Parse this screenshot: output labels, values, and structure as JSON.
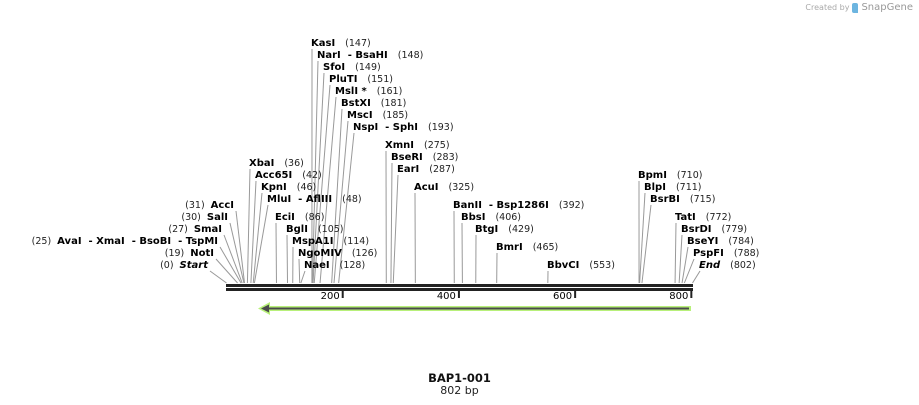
{
  "brand": {
    "created_by": "Created by",
    "name": "SnapGene"
  },
  "sequence": {
    "name": "BAP1-001",
    "length_label": "802 bp",
    "length": 802
  },
  "axis": {
    "ticks": [
      {
        "bp": 200,
        "label": "200"
      },
      {
        "bp": 400,
        "label": "400"
      },
      {
        "bp": 600,
        "label": "600"
      },
      {
        "bp": 800,
        "label": "800"
      }
    ]
  },
  "feature": {
    "type": "arrow",
    "direction": "reverse",
    "color": "#b8f07a",
    "line_color": "#4a4a4a"
  },
  "sites": [
    {
      "label": "Start",
      "pos": "(0)",
      "bp": 0,
      "italic": true
    },
    {
      "label": "NotI",
      "pos": "(19)",
      "bp": 19
    },
    {
      "label": "AvaI  - XmaI  - BsoBI  - TspMI",
      "pos": "(25)",
      "bp": 25
    },
    {
      "label": "SmaI",
      "pos": "(27)",
      "bp": 27
    },
    {
      "label": "SalI",
      "pos": "(30)",
      "bp": 30
    },
    {
      "label": "AccI",
      "pos": "(31)",
      "bp": 31
    },
    {
      "label": "XbaI",
      "pos": "(36)",
      "bp": 36
    },
    {
      "label": "Acc65I",
      "pos": "(42)",
      "bp": 42
    },
    {
      "label": "KpnI",
      "pos": "(46)",
      "bp": 46
    },
    {
      "label": "MluI  - AflIII",
      "pos": "(48)",
      "bp": 48
    },
    {
      "label": "EciI",
      "pos": "(86)",
      "bp": 86
    },
    {
      "label": "BglI",
      "pos": "(105)",
      "bp": 105
    },
    {
      "label": "MspA1I",
      "pos": "(114)",
      "bp": 114
    },
    {
      "label": "NgoMIV",
      "pos": "(126)",
      "bp": 126
    },
    {
      "label": "NaeI",
      "pos": "(128)",
      "bp": 128
    },
    {
      "label": "KasI",
      "pos": "(147)",
      "bp": 147
    },
    {
      "label": "NarI  - BsaHI",
      "pos": "(148)",
      "bp": 148
    },
    {
      "label": "SfoI",
      "pos": "(149)",
      "bp": 149
    },
    {
      "label": "PluTI",
      "pos": "(151)",
      "bp": 151
    },
    {
      "label": "MslI *",
      "pos": "(161)",
      "bp": 161
    },
    {
      "label": "BstXI",
      "pos": "(181)",
      "bp": 181
    },
    {
      "label": "MscI",
      "pos": "(185)",
      "bp": 185
    },
    {
      "label": "NspI  - SphI",
      "pos": "(193)",
      "bp": 193
    },
    {
      "label": "XmnI",
      "pos": "(275)",
      "bp": 275
    },
    {
      "label": "BseRI",
      "pos": "(283)",
      "bp": 283
    },
    {
      "label": "EarI",
      "pos": "(287)",
      "bp": 287
    },
    {
      "label": "AcuI",
      "pos": "(325)",
      "bp": 325
    },
    {
      "label": "BanII  - Bsp1286I",
      "pos": "(392)",
      "bp": 392
    },
    {
      "label": "BbsI",
      "pos": "(406)",
      "bp": 406
    },
    {
      "label": "BtgI",
      "pos": "(429)",
      "bp": 429
    },
    {
      "label": "BmrI",
      "pos": "(465)",
      "bp": 465
    },
    {
      "label": "BbvCI",
      "pos": "(553)",
      "bp": 553
    },
    {
      "label": "BpmI",
      "pos": "(710)",
      "bp": 710
    },
    {
      "label": "BlpI",
      "pos": "(711)",
      "bp": 711
    },
    {
      "label": "BsrBI",
      "pos": "(715)",
      "bp": 715
    },
    {
      "label": "TatI",
      "pos": "(772)",
      "bp": 772
    },
    {
      "label": "BsrDI",
      "pos": "(779)",
      "bp": 779
    },
    {
      "label": "BseYI",
      "pos": "(784)",
      "bp": 784
    },
    {
      "label": "PspFI",
      "pos": "(788)",
      "bp": 788
    },
    {
      "label": "End",
      "pos": "(802)",
      "bp": 802,
      "italic": true
    }
  ]
}
